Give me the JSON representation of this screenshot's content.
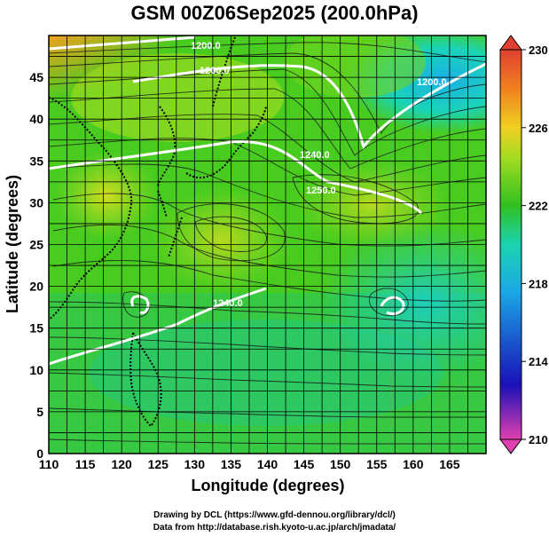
{
  "title": "GSM 00Z06Sep2025 (200.0hPa)",
  "chart_data": {
    "type": "heatmap",
    "title": "GSM 00Z06Sep2025 (200.0hPa)",
    "xlabel": "Longitude (degrees)",
    "ylabel": "Latitude  (degrees)",
    "xlim": [
      110,
      170
    ],
    "ylim": [
      0,
      50
    ],
    "xticks": [
      "110",
      "115",
      "120",
      "125",
      "130",
      "135",
      "140",
      "145",
      "150",
      "155",
      "160",
      "165"
    ],
    "yticks": [
      "0",
      "5",
      "10",
      "15",
      "20",
      "25",
      "30",
      "35",
      "40",
      "45"
    ],
    "grid": true,
    "colorbar": {
      "ticks": [
        "210",
        "214",
        "218",
        "222",
        "226",
        "230"
      ],
      "range": [
        210,
        230
      ],
      "colors": [
        "#e040b0",
        "#1a10b8",
        "#1aa8e6",
        "#1ad4b0",
        "#30c020",
        "#a0dc20",
        "#f0d020",
        "#f08020",
        "#e04030"
      ]
    },
    "contour_labels": [
      "1200.0",
      "1200.0",
      "1240.0",
      "1250.0",
      "1240.0",
      "1200.0"
    ]
  },
  "credits": {
    "line1": "Drawing by DCL (https://www.gfd-dennou.org/library/dcl/)",
    "line2": "Data from http://database.rish.kyoto-u.ac.jp/arch/jmadata/"
  }
}
